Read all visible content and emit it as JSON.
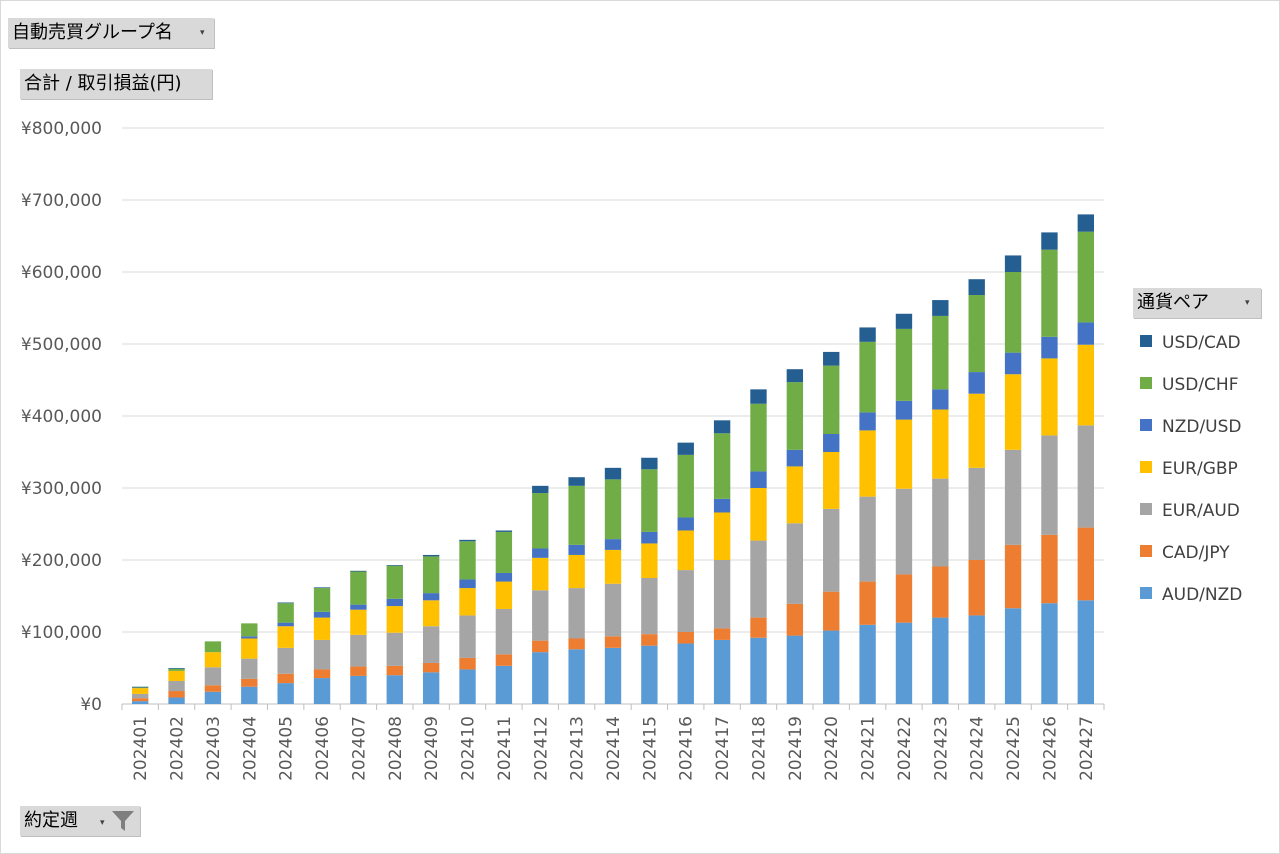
{
  "filters": {
    "group_label": "自動売買グループ名",
    "value_label": "合計 / 取引損益(円)",
    "legend_title": "通貨ペア",
    "axis_field_label": "約定週"
  },
  "colors": {
    "USD/CAD": "#255e91",
    "USD/CHF": "#70ad47",
    "NZD/USD": "#4472c4",
    "EUR/GBP": "#ffc000",
    "EUR/AUD": "#a5a5a5",
    "CAD/JPY": "#ed7d31",
    "AUD/NZD": "#5b9bd5"
  },
  "legend_order": [
    "USD/CAD",
    "USD/CHF",
    "NZD/USD",
    "EUR/GBP",
    "EUR/AUD",
    "CAD/JPY",
    "AUD/NZD"
  ],
  "chart_data": {
    "type": "bar",
    "stacked": true,
    "title": "",
    "xlabel": "",
    "ylabel": "",
    "ylim": [
      0,
      800000
    ],
    "yticks": [
      0,
      100000,
      200000,
      300000,
      400000,
      500000,
      600000,
      700000,
      800000
    ],
    "ytick_labels": [
      "¥0",
      "¥100,000",
      "¥200,000",
      "¥300,000",
      "¥400,000",
      "¥500,000",
      "¥600,000",
      "¥700,000",
      "¥800,000"
    ],
    "grid": true,
    "legend": "right",
    "categories": [
      "202401",
      "202402",
      "202403",
      "202404",
      "202405",
      "202406",
      "202407",
      "202408",
      "202409",
      "202410",
      "202411",
      "202412",
      "202413",
      "202414",
      "202415",
      "202416",
      "202417",
      "202418",
      "202419",
      "202420",
      "202421",
      "202422",
      "202423",
      "202424",
      "202425",
      "202426",
      "202427"
    ],
    "series": [
      {
        "name": "AUD/NZD",
        "values": [
          4000,
          9000,
          17000,
          24000,
          29000,
          36000,
          39000,
          40000,
          44000,
          48000,
          53000,
          72000,
          76000,
          78000,
          81000,
          84000,
          89000,
          92000,
          95000,
          102000,
          110000,
          113000,
          120000,
          123000,
          133000,
          140000,
          144000
        ]
      },
      {
        "name": "CAD/JPY",
        "values": [
          4000,
          9000,
          9000,
          11000,
          13000,
          12000,
          13000,
          13000,
          13000,
          16000,
          16000,
          16000,
          15000,
          16000,
          16000,
          16000,
          16000,
          28000,
          44000,
          54000,
          60000,
          67000,
          71000,
          77000,
          88000,
          95000,
          101000
        ]
      },
      {
        "name": "EUR/AUD",
        "values": [
          6000,
          14000,
          25000,
          28000,
          36000,
          41000,
          44000,
          46000,
          51000,
          59000,
          63000,
          70000,
          70000,
          73000,
          78000,
          86000,
          95000,
          107000,
          112000,
          115000,
          118000,
          119000,
          122000,
          128000,
          132000,
          138000,
          142000
        ]
      },
      {
        "name": "EUR/GBP",
        "values": [
          8000,
          14000,
          21000,
          28000,
          30000,
          31000,
          35000,
          37000,
          36000,
          38000,
          38000,
          45000,
          46000,
          47000,
          48000,
          55000,
          66000,
          73000,
          79000,
          79000,
          92000,
          96000,
          96000,
          103000,
          105000,
          107000,
          112000
        ]
      },
      {
        "name": "NZD/USD",
        "values": [
          0,
          0,
          0,
          3000,
          5000,
          8000,
          7000,
          10000,
          10000,
          12000,
          12000,
          13000,
          14000,
          15000,
          16000,
          18000,
          19000,
          23000,
          23000,
          25000,
          25000,
          26000,
          28000,
          30000,
          30000,
          30000,
          31000
        ]
      },
      {
        "name": "USD/CHF",
        "values": [
          1000,
          3000,
          15000,
          18000,
          27000,
          33000,
          46000,
          46000,
          51000,
          53000,
          57000,
          77000,
          82000,
          83000,
          87000,
          87000,
          91000,
          94000,
          94000,
          95000,
          98000,
          100000,
          102000,
          107000,
          112000,
          121000,
          126000
        ]
      },
      {
        "name": "USD/CAD",
        "values": [
          1000,
          1000,
          0,
          0,
          1000,
          1000,
          1000,
          1000,
          2000,
          2000,
          2000,
          10000,
          12000,
          16000,
          16000,
          17000,
          18000,
          20000,
          18000,
          19000,
          20000,
          21000,
          22000,
          22000,
          23000,
          24000,
          24000
        ]
      }
    ]
  }
}
